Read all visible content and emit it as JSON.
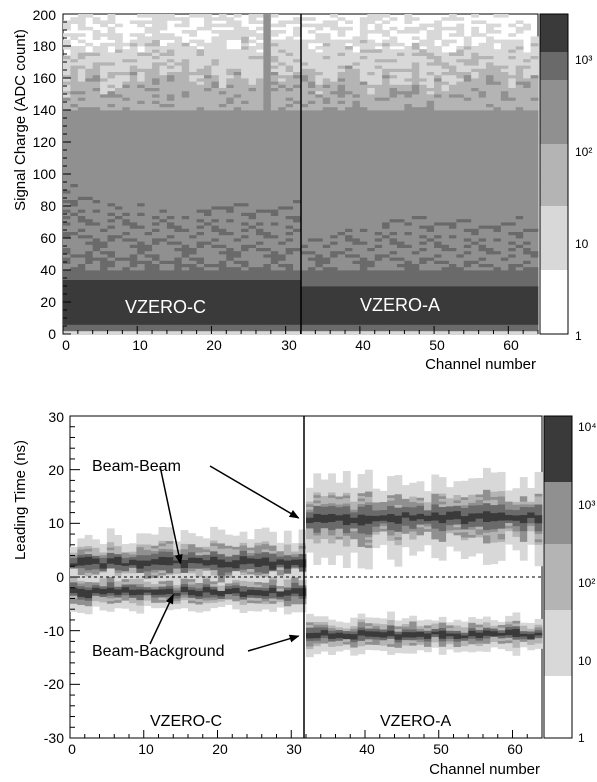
{
  "chart_data": [
    {
      "type": "heatmap",
      "title": "",
      "xlabel": "Channel number",
      "ylabel": "Signal Charge (ADC count)",
      "xlim": [
        0,
        64
      ],
      "ylim": [
        0,
        200
      ],
      "x_ticks": [
        "0",
        "10",
        "20",
        "30",
        "40",
        "50",
        "60"
      ],
      "y_ticks": [
        "0",
        "20",
        "40",
        "60",
        "80",
        "100",
        "120",
        "140",
        "160",
        "180",
        "200"
      ],
      "z_scale": "log",
      "z_ticks": [
        "1",
        "10",
        "10²",
        "10³"
      ],
      "shade_bins": [
        1,
        5,
        20,
        100,
        400,
        2000
      ],
      "divider_channel": 31.5,
      "annotations": [
        "VZERO-C",
        "VZERO-A"
      ],
      "bands": [
        {
          "from": 0,
          "to": 5,
          "level": 5
        },
        {
          "from": 5,
          "to": 32,
          "level": 5
        },
        {
          "from": 32,
          "to": 42,
          "level": 4
        },
        {
          "from": 42,
          "to": 70,
          "level": 3
        },
        {
          "from": 70,
          "to": 100,
          "level": 3
        },
        {
          "from": 100,
          "to": 140,
          "level": 3
        },
        {
          "from": 140,
          "to": 162,
          "level": 2
        },
        {
          "from": 162,
          "to": 180,
          "level": 1
        },
        {
          "from": 180,
          "to": 200,
          "level": 0
        }
      ],
      "profile_C": [
        {
          "x": 0,
          "y": 95
        },
        {
          "x": 2,
          "y": 90
        },
        {
          "x": 5,
          "y": 82
        },
        {
          "x": 10,
          "y": 78
        },
        {
          "x": 15,
          "y": 76
        },
        {
          "x": 20,
          "y": 78
        },
        {
          "x": 25,
          "y": 82
        },
        {
          "x": 31,
          "y": 85
        }
      ],
      "profile_A": [
        {
          "x": 32,
          "y": 58
        },
        {
          "x": 35,
          "y": 63
        },
        {
          "x": 40,
          "y": 66
        },
        {
          "x": 45,
          "y": 70
        },
        {
          "x": 50,
          "y": 72
        },
        {
          "x": 55,
          "y": 73
        },
        {
          "x": 60,
          "y": 74
        },
        {
          "x": 64,
          "y": 74
        }
      ],
      "spikes": [
        {
          "x": 27,
          "y": 200
        },
        {
          "x": 27,
          "y": 120
        }
      ]
    },
    {
      "type": "heatmap",
      "title": "",
      "xlabel": "Channel number",
      "ylabel": "Leading Time (ns)",
      "xlim": [
        0,
        64
      ],
      "ylim": [
        -30,
        30
      ],
      "x_ticks": [
        "0",
        "10",
        "20",
        "30",
        "40",
        "50",
        "60"
      ],
      "y_ticks": [
        "-30",
        "-20",
        "-10",
        "0",
        "10",
        "20",
        "30"
      ],
      "z_scale": "log",
      "z_ticks": [
        "1",
        "10",
        "10²",
        "10³",
        "10⁴"
      ],
      "shade_bins": [
        1,
        20,
        100,
        1000,
        5000,
        10000
      ],
      "divider_channel": 31.5,
      "dashed_zero_line": true,
      "annotations": [
        "VZERO-C",
        "VZERO-A",
        "Beam-Beam",
        "Beam-Background"
      ],
      "clusters": [
        {
          "channels": [
            0,
            31.5
          ],
          "center": 2.5,
          "half_widths": [
            5,
            3,
            1.5,
            0.6
          ]
        },
        {
          "channels": [
            0,
            31.5
          ],
          "center": -3,
          "half_widths": [
            3,
            2,
            1,
            0.5
          ]
        },
        {
          "channels": [
            31.5,
            64
          ],
          "center": 10.7,
          "half_widths": [
            7,
            4,
            2,
            0.7
          ]
        },
        {
          "channels": [
            31.5,
            64
          ],
          "center": -11,
          "half_widths": [
            3,
            2,
            1,
            0.5
          ]
        }
      ],
      "arrow_targets": [
        {
          "label": "Beam-Beam",
          "points": [
            {
              "x": 15,
              "y": 2.5
            },
            {
              "x": 31,
              "y": 11
            }
          ]
        },
        {
          "label": "Beam-Background",
          "points": [
            {
              "x": 14,
              "y": -3.3
            },
            {
              "x": 31,
              "y": -11
            }
          ]
        }
      ]
    }
  ]
}
